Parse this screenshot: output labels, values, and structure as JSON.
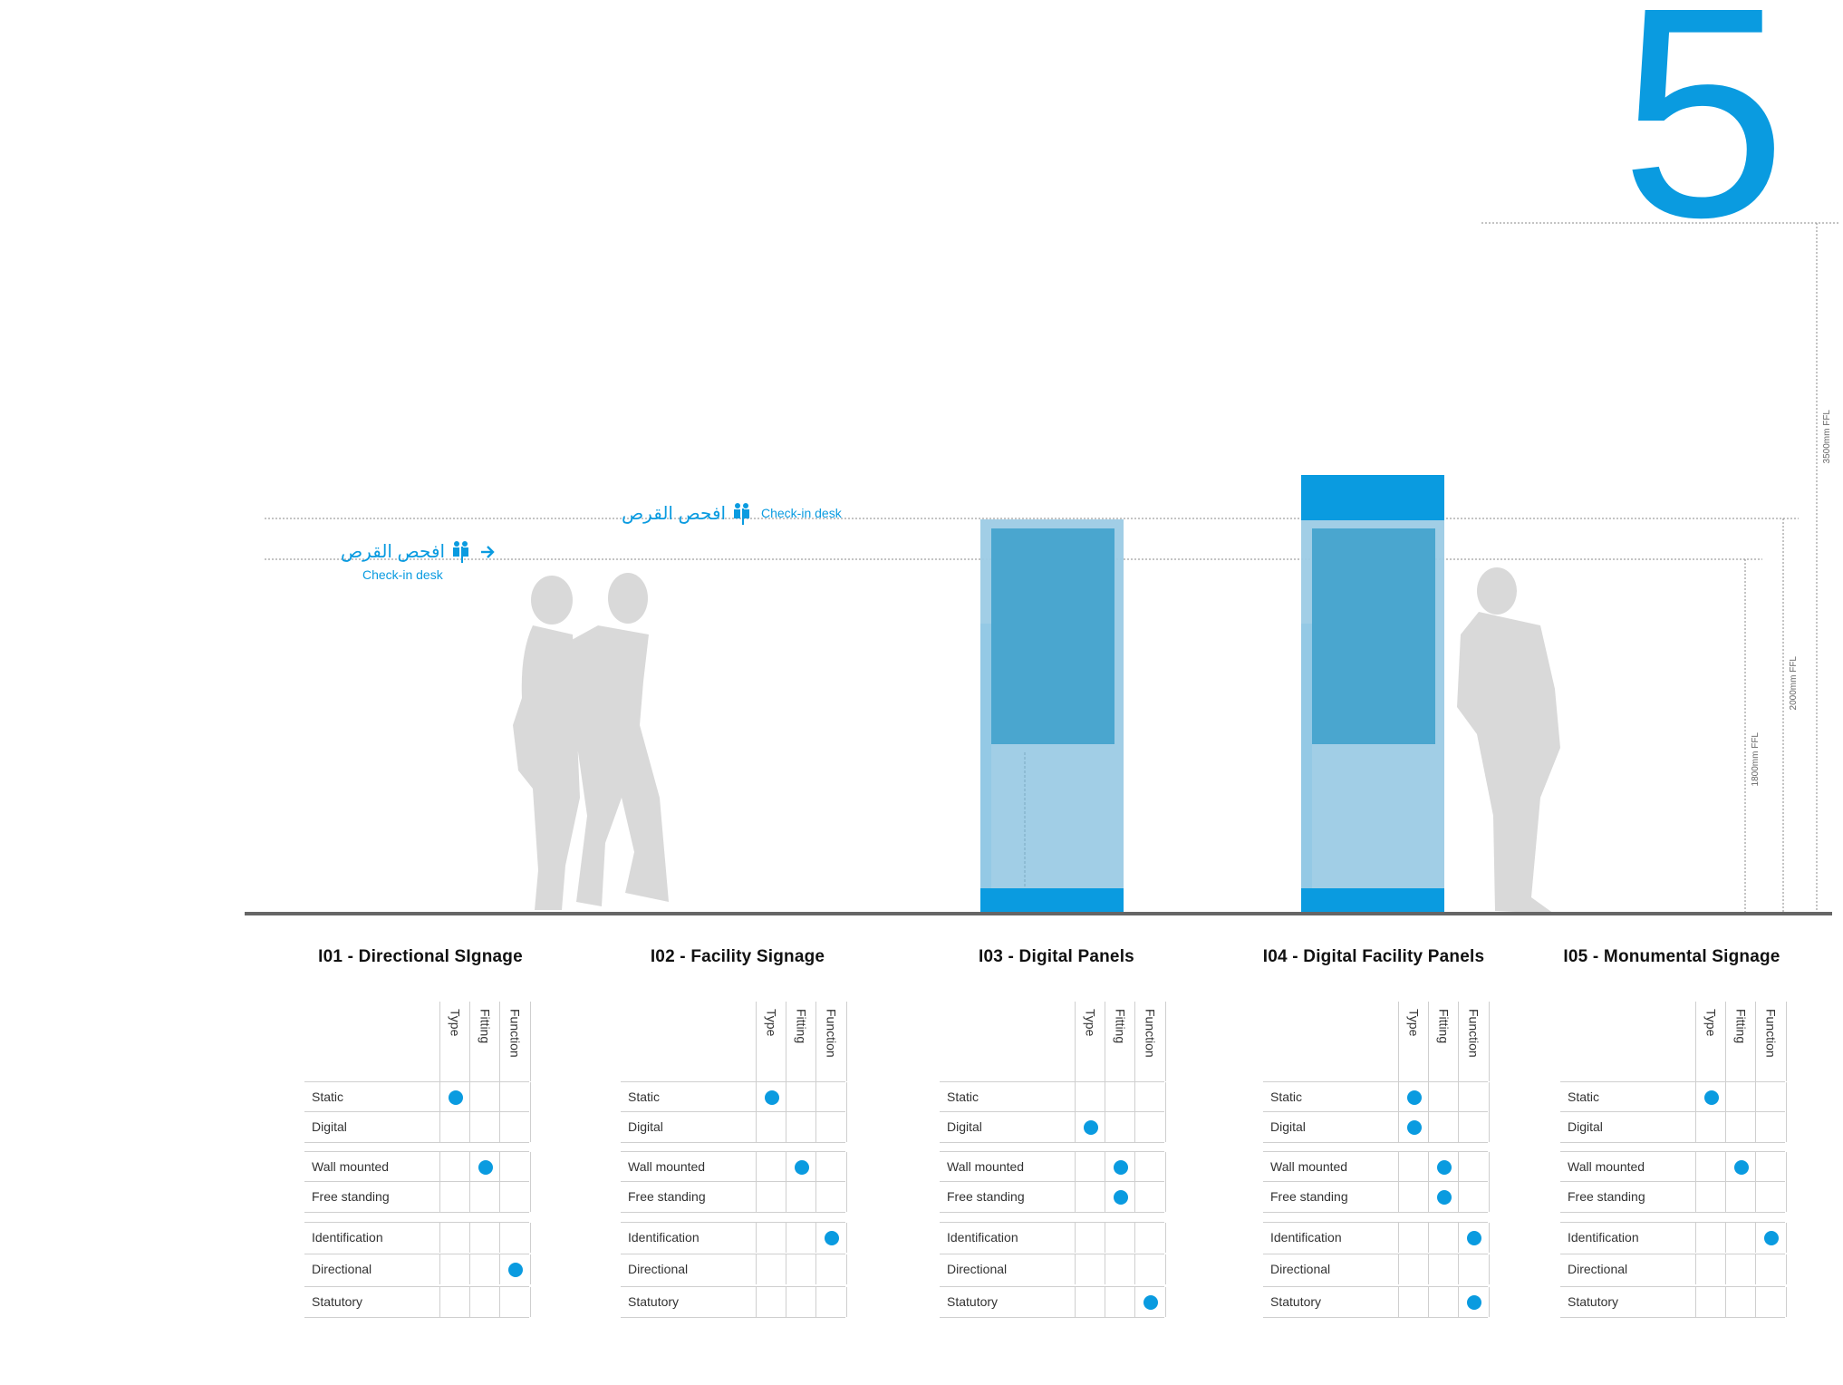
{
  "brand": {
    "accent": "#0a9be0",
    "silhouette": "#d9d9d9",
    "panel_glass": "#9ccbe5",
    "screen": "#4aa6cf"
  },
  "page_number": "5",
  "icons": [
    "person-icon",
    "arrow-right-icon"
  ],
  "levels": {
    "l1": "1800mm FFL",
    "l2": "2000mm FFL",
    "l3": "3500mm FFL"
  },
  "signs": {
    "s1": {
      "ar": "افحص القرص",
      "en": "Check-in desk"
    },
    "s2": {
      "ar": "افحص القرص",
      "en": "Check-in desk"
    }
  },
  "matrix_columns": [
    "Type",
    "Fitting",
    "Function"
  ],
  "row_labels": [
    "Static",
    "Digital",
    "Wall mounted",
    "Free standing",
    "Identification",
    "Directional",
    "Statutory"
  ],
  "items": [
    {
      "title": "I01 - Directional SIgnage",
      "marks": [
        [
          1,
          0,
          0
        ],
        [
          0,
          0,
          0
        ],
        [
          0,
          1,
          0
        ],
        [
          0,
          0,
          0
        ],
        [
          0,
          0,
          0
        ],
        [
          0,
          0,
          1
        ],
        [
          0,
          0,
          0
        ]
      ]
    },
    {
      "title": "I02 - Facility Signage",
      "marks": [
        [
          1,
          0,
          0
        ],
        [
          0,
          0,
          0
        ],
        [
          0,
          1,
          0
        ],
        [
          0,
          0,
          0
        ],
        [
          0,
          0,
          1
        ],
        [
          0,
          0,
          0
        ],
        [
          0,
          0,
          0
        ]
      ]
    },
    {
      "title": "I03 - Digital Panels",
      "marks": [
        [
          0,
          0,
          0
        ],
        [
          1,
          0,
          0
        ],
        [
          0,
          1,
          0
        ],
        [
          0,
          1,
          0
        ],
        [
          0,
          0,
          0
        ],
        [
          0,
          0,
          0
        ],
        [
          0,
          0,
          1
        ]
      ]
    },
    {
      "title": "I04 - Digital Facility Panels",
      "marks": [
        [
          1,
          0,
          0
        ],
        [
          1,
          0,
          0
        ],
        [
          0,
          1,
          0
        ],
        [
          0,
          1,
          0
        ],
        [
          0,
          0,
          1
        ],
        [
          0,
          0,
          0
        ],
        [
          0,
          0,
          1
        ]
      ]
    },
    {
      "title": "I05 - Monumental Signage",
      "marks": [
        [
          1,
          0,
          0
        ],
        [
          0,
          0,
          0
        ],
        [
          0,
          1,
          0
        ],
        [
          0,
          0,
          0
        ],
        [
          0,
          0,
          1
        ],
        [
          0,
          0,
          0
        ],
        [
          0,
          0,
          0
        ]
      ]
    }
  ]
}
